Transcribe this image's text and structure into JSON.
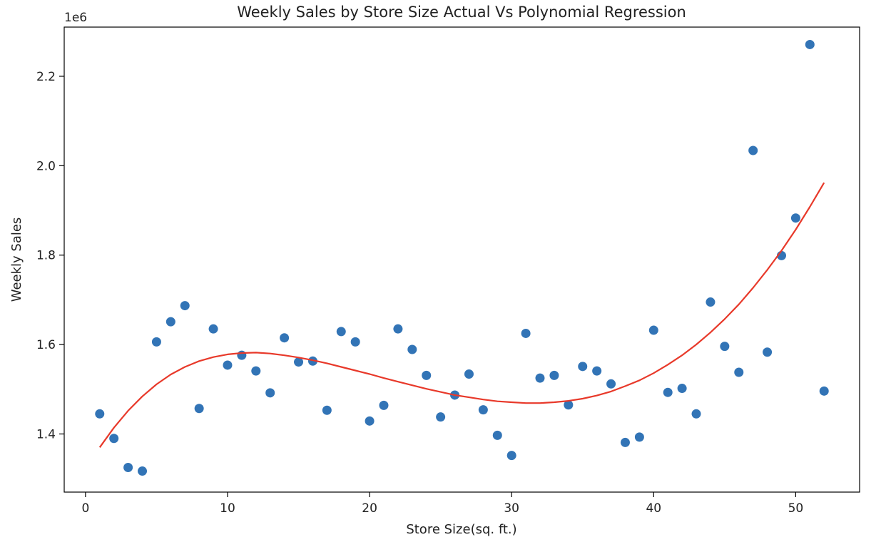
{
  "chart_data": {
    "type": "scatter",
    "title": "Weekly Sales by Store Size Actual Vs Polynomial Regression",
    "xlabel": "Store Size(sq. ft.)",
    "ylabel": "Weekly Sales",
    "y_offset_label": "1e6",
    "xlim": [
      -1.5,
      54.5
    ],
    "ylim": [
      1.27,
      2.31
    ],
    "xticks": [
      0,
      10,
      20,
      30,
      40,
      50
    ],
    "xtick_labels": [
      "0",
      "10",
      "20",
      "30",
      "40",
      "50"
    ],
    "yticks": [
      1.4,
      1.6,
      1.8,
      2.0,
      2.2
    ],
    "ytick_labels": [
      "1.4",
      "1.6",
      "1.8",
      "2.0",
      "2.2"
    ],
    "grid": false,
    "series": [
      {
        "kind": "scatter",
        "color": "#3274b6",
        "x": [
          1,
          2,
          3,
          4,
          5,
          6,
          7,
          8,
          9,
          10,
          11,
          12,
          13,
          14,
          15,
          16,
          17,
          18,
          19,
          20,
          21,
          22,
          23,
          24,
          25,
          26,
          27,
          28,
          29,
          30,
          31,
          32,
          33,
          34,
          35,
          36,
          37,
          38,
          39,
          40,
          41,
          42,
          43,
          44,
          45,
          46,
          47,
          48,
          49,
          50,
          51,
          52
        ],
        "y": [
          1.445,
          1.39,
          1.325,
          1.317,
          1.606,
          1.651,
          1.687,
          1.457,
          1.635,
          1.554,
          1.576,
          1.541,
          1.492,
          1.615,
          1.561,
          1.563,
          1.453,
          1.629,
          1.606,
          1.429,
          1.464,
          1.635,
          1.589,
          1.531,
          1.438,
          1.487,
          1.534,
          1.454,
          1.397,
          1.352,
          1.625,
          1.525,
          1.531,
          1.465,
          1.551,
          1.541,
          1.512,
          1.381,
          1.393,
          1.632,
          1.493,
          1.502,
          1.445,
          1.695,
          1.596,
          1.538,
          2.034,
          1.583,
          1.799,
          1.883,
          2.271,
          1.496
        ]
      },
      {
        "kind": "line",
        "color": "#e8392a",
        "x": [
          1,
          2,
          3,
          4,
          5,
          6,
          7,
          8,
          9,
          10,
          11,
          12,
          13,
          14,
          15,
          16,
          17,
          18,
          19,
          20,
          21,
          22,
          23,
          24,
          25,
          26,
          27,
          28,
          29,
          30,
          31,
          32,
          33,
          34,
          35,
          36,
          37,
          38,
          39,
          40,
          41,
          42,
          43,
          44,
          45,
          46,
          47,
          48,
          49,
          50,
          51,
          52
        ],
        "y": [
          1.37,
          1.414,
          1.452,
          1.484,
          1.511,
          1.533,
          1.55,
          1.563,
          1.572,
          1.578,
          1.581,
          1.582,
          1.58,
          1.576,
          1.571,
          1.565,
          1.558,
          1.55,
          1.542,
          1.534,
          1.525,
          1.517,
          1.509,
          1.501,
          1.494,
          1.487,
          1.482,
          1.477,
          1.473,
          1.471,
          1.469,
          1.469,
          1.471,
          1.474,
          1.479,
          1.486,
          1.495,
          1.507,
          1.52,
          1.536,
          1.555,
          1.576,
          1.6,
          1.627,
          1.657,
          1.69,
          1.727,
          1.767,
          1.81,
          1.857,
          1.908,
          1.962
        ]
      }
    ]
  }
}
